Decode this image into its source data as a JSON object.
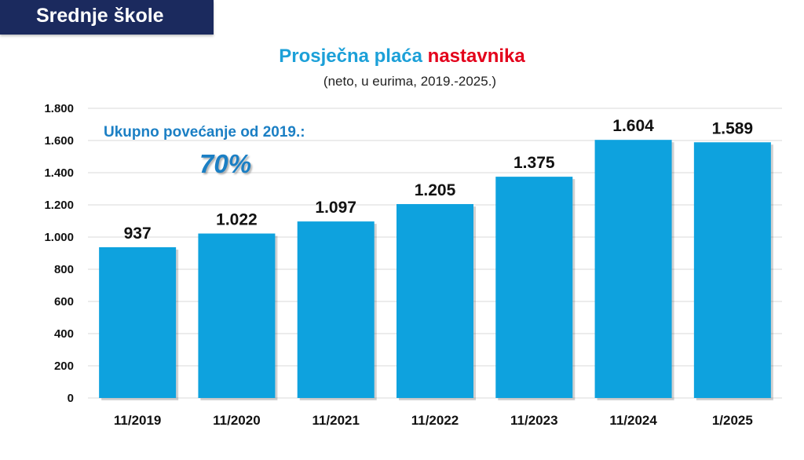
{
  "header": {
    "label": "Srednje škole"
  },
  "chart_data": {
    "type": "bar",
    "title_main": "Prosječna plaća",
    "title_accent": "nastavnika",
    "subtitle": "(neto, u eurima, 2019.-2025.)",
    "annotation_text": "Ukupno povećanje od 2019.:",
    "annotation_value": "70%",
    "categories": [
      "11/2019",
      "11/2020",
      "11/2021",
      "11/2022",
      "11/2023",
      "11/2024",
      "1/2025"
    ],
    "values": [
      937,
      1022,
      1097,
      1205,
      1375,
      1604,
      1589
    ],
    "value_labels": [
      "937",
      "1.022",
      "1.097",
      "1.205",
      "1.375",
      "1.604",
      "1.589"
    ],
    "ylim": [
      0,
      1800
    ],
    "yticks": [
      0,
      200,
      400,
      600,
      800,
      1000,
      1200,
      1400,
      1600,
      1800
    ],
    "ytick_labels": [
      "0",
      "200",
      "400",
      "600",
      "800",
      "1.000",
      "1.200",
      "1.400",
      "1.600",
      "1.800"
    ],
    "grid": true,
    "colors": {
      "bar": "#0ea2de",
      "title": "#1ca0d8",
      "accent": "#e3001b",
      "annotation": "#1b7fc4",
      "header": "#1b2a5e"
    }
  }
}
